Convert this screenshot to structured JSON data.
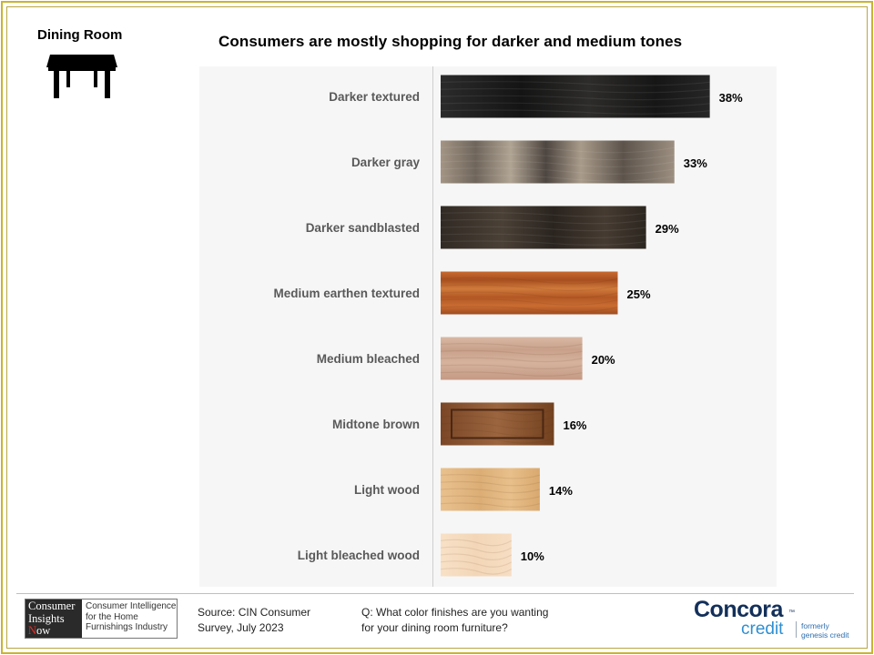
{
  "header": {
    "section_title": "Dining Room",
    "icon": "table-icon"
  },
  "chart_data": {
    "type": "bar",
    "orientation": "horizontal",
    "title": "Consumers are mostly shopping for darker and medium tones",
    "categories": [
      "Darker textured",
      "Darker gray",
      "Darker sandblasted",
      "Medium earthen textured",
      "Medium bleached",
      "Midtone brown",
      "Light wood",
      "Light bleached wood"
    ],
    "values": [
      38,
      33,
      29,
      25,
      20,
      16,
      14,
      10
    ],
    "value_labels": [
      "38%",
      "33%",
      "29%",
      "25%",
      "20%",
      "16%",
      "14%",
      "10%"
    ],
    "xlim": [
      0,
      45
    ],
    "grid": false,
    "legend": "none",
    "bar_fills": [
      "dark-textured-wood",
      "gray-grain-wood",
      "sandblasted-dark-wood",
      "orange-earthen-wood",
      "bleached-pale-wood",
      "framed-brown-panel",
      "light-grain-wood",
      "bleached-light-wood"
    ],
    "colors": [
      "#1d1c1b",
      "#8a7e72",
      "#3a332c",
      "#bb5f29",
      "#d1ad95",
      "#8b5633",
      "#e4b883",
      "#f6dcc0"
    ]
  },
  "footer": {
    "logo": {
      "line1": "Consumer",
      "line2": "Insights",
      "line3_accent": "N",
      "line3_rest": "ow",
      "tagline_1": "Consumer Intelligence",
      "tagline_2": "for the Home",
      "tagline_3": "Furnishings Industry"
    },
    "source_line1": "Source:  CIN Consumer",
    "source_line2": "Survey, July 2023",
    "question_line1": "Q: What color finishes are you wanting",
    "question_line2": "for your dining room furniture?",
    "brand": {
      "name": "Concora",
      "trademark": "™",
      "sub": "credit",
      "formerly_1": "formerly",
      "formerly_2": "genesis credit",
      "color_primary": "#13305a",
      "color_secondary": "#2e8fd1"
    }
  }
}
